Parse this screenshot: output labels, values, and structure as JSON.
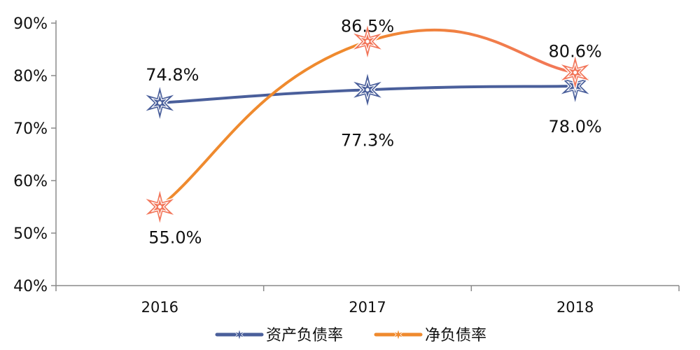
{
  "chart_data": {
    "type": "line",
    "title": "",
    "xlabel": "",
    "ylabel": "",
    "categories": [
      "2016",
      "2017",
      "2018"
    ],
    "ylim": [
      40,
      90
    ],
    "yticks": [
      "40%",
      "50%",
      "60%",
      "70%",
      "80%",
      "90%"
    ],
    "ytick_values": [
      40,
      50,
      60,
      70,
      80,
      90
    ],
    "grid": false,
    "legend_position": "bottom",
    "series": [
      {
        "name": "资产负债率",
        "values": [
          74.8,
          77.3,
          78.0
        ],
        "labels": [
          "74.8%",
          "77.3%",
          "78.0%"
        ],
        "color": "#4a5f9b",
        "marker": "star"
      },
      {
        "name": "净负债率",
        "values": [
          55.0,
          86.5,
          80.6
        ],
        "labels": [
          "55.0%",
          "86.5%",
          "80.6%"
        ],
        "color": "#f2765a",
        "gradient_start": "#ef8a2e",
        "marker": "star"
      }
    ]
  }
}
